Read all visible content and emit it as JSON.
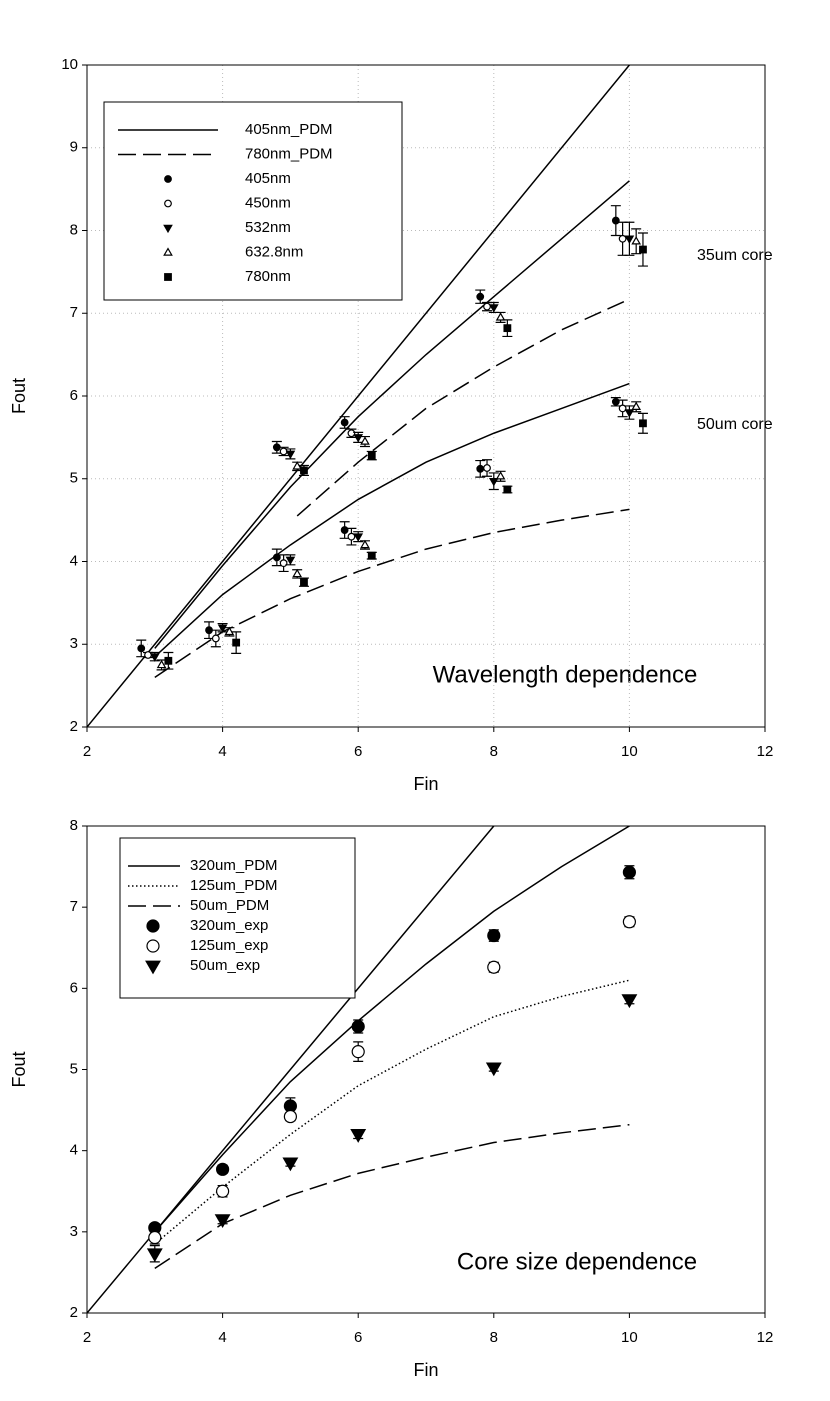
{
  "chart_data": [
    {
      "type": "scatter",
      "xlabel": "Fin",
      "ylabel": "Fout",
      "xlim": [
        2,
        12
      ],
      "ylim": [
        2,
        10
      ],
      "xticks": [
        2,
        4,
        6,
        8,
        10,
        12
      ],
      "yticks": [
        2,
        3,
        4,
        5,
        6,
        7,
        8,
        9,
        10
      ],
      "grid": true,
      "annotations": [
        "35um core",
        "50um core",
        "Wavelength dependence"
      ],
      "lines": [
        {
          "name": "405nm_PDM",
          "color": "#000000",
          "linestyle": "solid",
          "x": [
            2,
            10,
            null,
            3,
            4,
            5,
            6,
            7,
            8,
            9,
            10,
            null,
            3,
            4,
            5,
            6,
            7,
            8,
            9,
            10
          ],
          "values": [
            2,
            10,
            null,
            2.95,
            3.95,
            4.9,
            5.75,
            6.5,
            7.2,
            7.9,
            8.6,
            null,
            2.85,
            3.6,
            4.2,
            4.75,
            5.2,
            5.55,
            5.85,
            6.15
          ]
        },
        {
          "name": "780nm_PDM",
          "color": "#000000",
          "linestyle": "dashed",
          "x": [
            5.1,
            6,
            7,
            8,
            9,
            10,
            null,
            3,
            4,
            5,
            6,
            7,
            8,
            9,
            10
          ],
          "values": [
            4.55,
            5.2,
            5.85,
            6.35,
            6.8,
            7.17,
            null,
            2.6,
            3.15,
            3.55,
            3.88,
            4.15,
            4.35,
            4.5,
            4.63
          ]
        }
      ],
      "series": [
        {
          "name": "405nm",
          "color": "#000000",
          "marker": "circle-filled",
          "x": [
            2.8,
            3.8,
            4.8,
            4.8,
            5.8,
            5.8,
            7.8,
            7.8,
            9.8,
            9.8
          ],
          "values": [
            2.95,
            3.17,
            5.38,
            4.05,
            5.68,
            4.38,
            7.2,
            5.12,
            8.12,
            5.93
          ],
          "errors": [
            0.1,
            0.1,
            0.07,
            0.1,
            0.07,
            0.1,
            0.08,
            0.1,
            0.18,
            0.05
          ]
        },
        {
          "name": "450nm",
          "color": "#000000",
          "marker": "circle-open",
          "x": [
            2.9,
            3.9,
            4.9,
            4.9,
            5.9,
            5.9,
            7.9,
            7.9,
            9.9,
            9.9
          ],
          "values": [
            2.87,
            3.07,
            5.33,
            3.98,
            5.55,
            4.3,
            7.08,
            5.13,
            7.9,
            5.85
          ],
          "errors": [
            0.03,
            0.1,
            0.05,
            0.1,
            0.05,
            0.1,
            0.05,
            0.1,
            0.2,
            0.1
          ]
        },
        {
          "name": "532nm",
          "color": "#000000",
          "marker": "triangle-down-filled",
          "x": [
            3,
            4,
            5,
            5,
            6,
            6,
            8,
            8,
            10,
            10
          ],
          "values": [
            2.85,
            3.2,
            5.3,
            4.02,
            5.5,
            4.3,
            7.07,
            4.97,
            7.9,
            5.8
          ],
          "errors": [
            0.05,
            0.05,
            0.06,
            0.06,
            0.06,
            0.06,
            0.06,
            0.1,
            0.2,
            0.08
          ]
        },
        {
          "name": "632.8nm",
          "color": "#000000",
          "marker": "triangle-up-open",
          "x": [
            3.1,
            4.1,
            5.1,
            5.1,
            6.1,
            6.1,
            8.1,
            8.1,
            10.1,
            10.1
          ],
          "values": [
            2.75,
            3.15,
            5.15,
            3.85,
            5.45,
            4.2,
            6.95,
            5.03,
            7.87,
            5.87
          ],
          "errors": [
            0.06,
            0.05,
            0.05,
            0.05,
            0.06,
            0.05,
            0.06,
            0.06,
            0.15,
            0.06
          ]
        },
        {
          "name": "780nm",
          "color": "#000000",
          "marker": "square-filled",
          "x": [
            3.2,
            4.2,
            5.2,
            5.2,
            6.2,
            6.2,
            8.2,
            8.2,
            10.2,
            10.2
          ],
          "values": [
            2.8,
            3.02,
            5.1,
            3.75,
            5.28,
            4.07,
            6.82,
            4.87,
            7.77,
            5.67
          ],
          "errors": [
            0.1,
            0.13,
            0.06,
            0.05,
            0.05,
            0.04,
            0.1,
            0.04,
            0.2,
            0.12
          ]
        }
      ]
    },
    {
      "type": "scatter",
      "xlabel": "Fin",
      "ylabel": "Fout",
      "xlim": [
        2,
        12
      ],
      "ylim": [
        2,
        8
      ],
      "xticks": [
        2,
        4,
        6,
        8,
        10,
        12
      ],
      "yticks": [
        2,
        3,
        4,
        5,
        6,
        7,
        8
      ],
      "grid": false,
      "annotations": [
        "Core size dependence"
      ],
      "lines": [
        {
          "name": "320um_PDM",
          "color": "#000000",
          "linestyle": "solid",
          "x": [
            2,
            8,
            null,
            3,
            4,
            5,
            6,
            7,
            8,
            9,
            10
          ],
          "values": [
            2,
            8,
            null,
            3.0,
            3.95,
            4.85,
            5.6,
            6.3,
            6.95,
            7.5,
            8.0
          ]
        },
        {
          "name": "125um_PDM",
          "color": "#000000",
          "linestyle": "dotted",
          "x": [
            3,
            4,
            5,
            6,
            7,
            8,
            9,
            10
          ],
          "values": [
            2.85,
            3.55,
            4.2,
            4.8,
            5.25,
            5.65,
            5.9,
            6.1
          ]
        },
        {
          "name": "50um_PDM",
          "color": "#000000",
          "linestyle": "dashed",
          "x": [
            3,
            4,
            5,
            6,
            7,
            8,
            9,
            10
          ],
          "values": [
            2.55,
            3.1,
            3.45,
            3.72,
            3.92,
            4.1,
            4.22,
            4.32
          ]
        }
      ],
      "series": [
        {
          "name": "320um_exp",
          "color": "#000000",
          "marker": "circle-filled",
          "x": [
            3,
            4,
            5,
            6,
            8,
            10
          ],
          "values": [
            3.05,
            3.77,
            4.55,
            5.53,
            6.65,
            7.43
          ],
          "errors": [
            0.05,
            0.05,
            0.1,
            0.08,
            0.07,
            0.08
          ]
        },
        {
          "name": "125um_exp",
          "color": "#000000",
          "marker": "circle-open",
          "x": [
            3,
            4,
            5,
            6,
            8,
            10
          ],
          "values": [
            2.93,
            3.5,
            4.42,
            5.22,
            6.26,
            6.82
          ],
          "errors": [
            0.08,
            0.07,
            0.05,
            0.12,
            0.06,
            0.06
          ]
        },
        {
          "name": "50um_exp",
          "color": "#000000",
          "marker": "triangle-down-filled",
          "x": [
            3,
            4,
            5,
            6,
            8,
            10
          ],
          "values": [
            2.73,
            3.15,
            3.85,
            4.2,
            5.02,
            5.86
          ],
          "errors": [
            0.1,
            0.05,
            0.04,
            0.05,
            0.04,
            0.05
          ]
        }
      ]
    }
  ]
}
